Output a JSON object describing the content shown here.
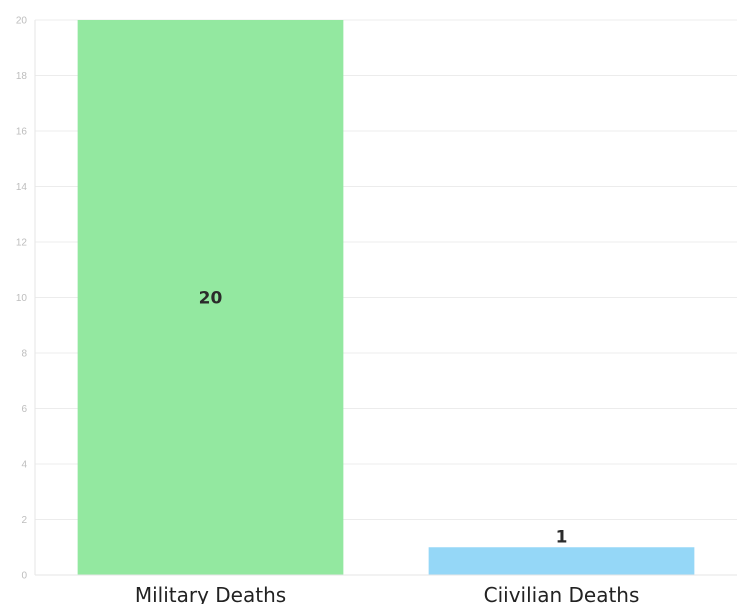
{
  "chart_data": {
    "type": "bar",
    "categories": [
      "Military Deaths",
      "Ciivilian Deaths"
    ],
    "values": [
      20,
      1
    ],
    "data_labels": [
      "20",
      "1"
    ],
    "bar_colors": [
      "#93e8a0",
      "#95d7f7"
    ],
    "title": "",
    "xlabel": "",
    "ylabel": "",
    "ylim": [
      0,
      20
    ],
    "yticks": [
      0,
      2,
      4,
      6,
      8,
      10,
      12,
      14,
      16,
      18,
      20
    ],
    "grid": true,
    "legend": "none"
  }
}
